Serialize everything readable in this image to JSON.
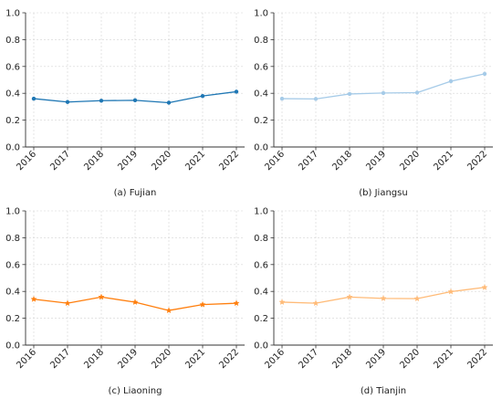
{
  "chart_data": [
    {
      "type": "line",
      "title": "(a) Fujian",
      "categories": [
        "2016",
        "2017",
        "2018",
        "2019",
        "2020",
        "2021",
        "2022"
      ],
      "values": [
        0.36,
        0.335,
        0.345,
        0.348,
        0.33,
        0.38,
        0.412
      ],
      "ylim": [
        0,
        1.0
      ],
      "yticks": [
        "0.0",
        "0.2",
        "0.4",
        "0.6",
        "0.8",
        "1.0"
      ],
      "color": "#1f77b4",
      "marker": "circle",
      "grid": true
    },
    {
      "type": "line",
      "title": "(b) Jiangsu",
      "categories": [
        "2016",
        "2017",
        "2018",
        "2019",
        "2020",
        "2021",
        "2022"
      ],
      "values": [
        0.36,
        0.358,
        0.395,
        0.402,
        0.405,
        0.49,
        0.545
      ],
      "ylim": [
        0,
        1.0
      ],
      "yticks": [
        "0.0",
        "0.2",
        "0.4",
        "0.6",
        "0.8",
        "1.0"
      ],
      "color": "#a6cbe8",
      "marker": "circle",
      "grid": true
    },
    {
      "type": "line",
      "title": "(c) Liaoning",
      "categories": [
        "2016",
        "2017",
        "2018",
        "2019",
        "2020",
        "2021",
        "2022"
      ],
      "values": [
        0.342,
        0.312,
        0.358,
        0.32,
        0.258,
        0.302,
        0.312
      ],
      "ylim": [
        0,
        1.0
      ],
      "yticks": [
        "0.0",
        "0.2",
        "0.4",
        "0.6",
        "0.8",
        "1.0"
      ],
      "color": "#ff7f0e",
      "marker": "star",
      "grid": true
    },
    {
      "type": "line",
      "title": "(d) Tianjin",
      "categories": [
        "2016",
        "2017",
        "2018",
        "2019",
        "2020",
        "2021",
        "2022"
      ],
      "values": [
        0.32,
        0.312,
        0.358,
        0.348,
        0.346,
        0.398,
        0.43
      ],
      "ylim": [
        0,
        1.0
      ],
      "yticks": [
        "0.0",
        "0.2",
        "0.4",
        "0.6",
        "0.8",
        "1.0"
      ],
      "color": "#ffbb78",
      "marker": "star",
      "grid": true
    }
  ]
}
